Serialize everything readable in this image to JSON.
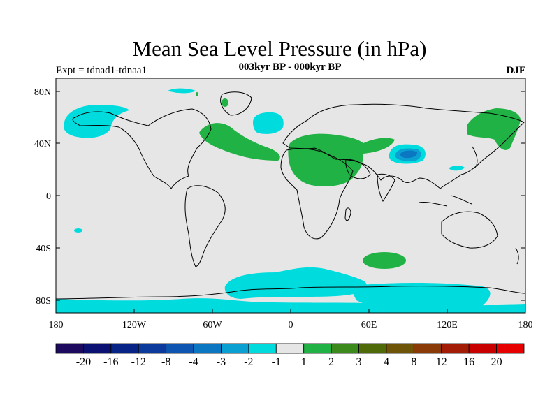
{
  "header": {
    "title": "Mean Sea Level Pressure (in hPa)",
    "subtitle": "003kyr BP - 000kyr BP",
    "experiment": "Expt = tdnad1-tdnaa1",
    "season": "DJF"
  },
  "map": {
    "background_color": "#e6e6e6",
    "lat_labels": [
      "80N",
      "40N",
      "0",
      "40S",
      "80S"
    ],
    "lon_labels": [
      "180",
      "120W",
      "60W",
      "0",
      "60E",
      "120E",
      "180"
    ],
    "lon_range": [
      -180,
      180
    ],
    "lat_range": [
      -90,
      90
    ]
  },
  "colorbar": {
    "labels": [
      "-20",
      "-16",
      "-12",
      "-8",
      "-4",
      "-3",
      "-2",
      "-1",
      "1",
      "2",
      "3",
      "4",
      "8",
      "12",
      "16",
      "20"
    ],
    "colors": [
      "#1d0a5e",
      "#0b1173",
      "#082386",
      "#0c3a9c",
      "#0d55b0",
      "#0b77c3",
      "#0aa0d2",
      "#00dcde",
      "#e6e6e6",
      "#21b245",
      "#3d8a1c",
      "#4f6a09",
      "#6e5407",
      "#8a3a06",
      "#a31d06",
      "#c80000",
      "#e60000"
    ]
  },
  "anomaly_regions": [
    {
      "name": "north-pacific-low",
      "level": "-1"
    },
    {
      "name": "north-atlantic-high",
      "level": "1"
    },
    {
      "name": "iceland-low",
      "level": "-1"
    },
    {
      "name": "eurasia-africa-high",
      "level": "1"
    },
    {
      "name": "tibet-low",
      "level": "-3"
    },
    {
      "name": "east-asia-high",
      "level": "1"
    },
    {
      "name": "southern-ocean-high",
      "level": "1"
    },
    {
      "name": "antarctic-low",
      "level": "-1"
    }
  ]
}
